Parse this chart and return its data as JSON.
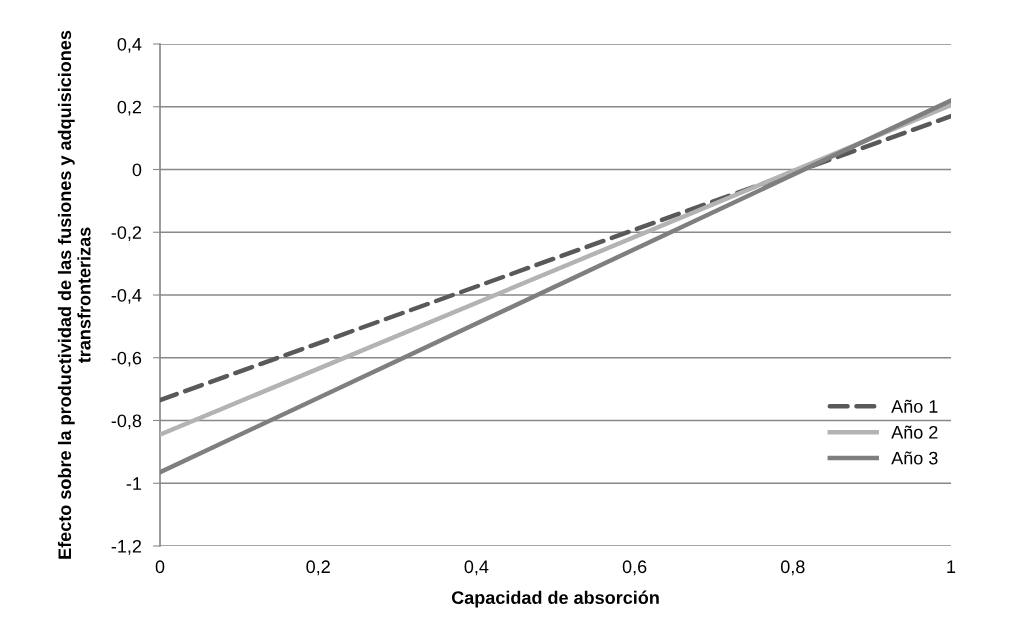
{
  "chart_data": {
    "type": "line",
    "xlabel": "Capacidad de absorción",
    "ylabel": "Efecto sobre la productividad de las fusiones y adquisiciones transfronterizas",
    "x": [
      0,
      1
    ],
    "series": [
      {
        "name": "Año 1",
        "color": "#595959",
        "values": [
          -0.735,
          0.17
        ],
        "line_style": "dashed"
      },
      {
        "name": "Año 2",
        "color": "#b3b3b3",
        "values": [
          -0.845,
          0.205
        ]
      },
      {
        "name": "Año 3",
        "color": "#7f7f7f",
        "values": [
          -0.965,
          0.22
        ]
      }
    ],
    "xlim": [
      0,
      1
    ],
    "xticks": [
      {
        "value": 0,
        "label": "0"
      },
      {
        "value": 0.2,
        "label": "0,2"
      },
      {
        "value": 0.4,
        "label": "0,4"
      },
      {
        "value": 0.6,
        "label": "0,6"
      },
      {
        "value": 0.8,
        "label": "0,8"
      },
      {
        "value": 1,
        "label": "1"
      }
    ],
    "ylim": [
      -1.2,
      0.4
    ],
    "yticks": [
      {
        "value": -1.2,
        "label": "-1,2"
      },
      {
        "value": -1,
        "label": "-1"
      },
      {
        "value": -0.8,
        "label": "-0,8"
      },
      {
        "value": -0.6,
        "label": "-0,6"
      },
      {
        "value": -0.4,
        "label": "-0,4"
      },
      {
        "value": -0.2,
        "label": "-0,2"
      },
      {
        "value": 0,
        "label": "0"
      },
      {
        "value": 0.2,
        "label": "0,2"
      },
      {
        "value": 0.4,
        "label": "0,4"
      }
    ],
    "grid": "y",
    "legend": "bottom right",
    "marker": "none"
  }
}
